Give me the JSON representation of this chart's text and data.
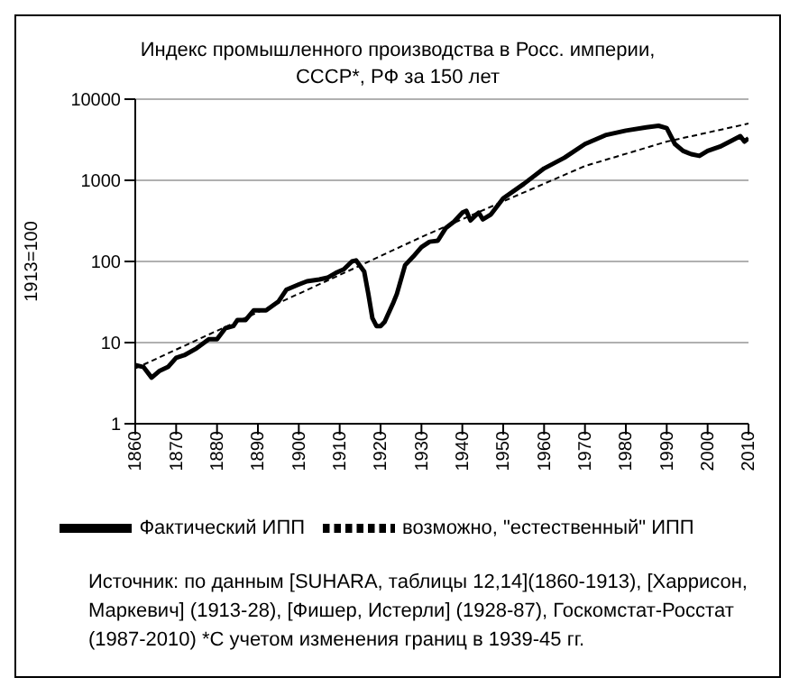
{
  "chart_data": {
    "type": "line",
    "title": "Индекс промышленного производства в Росс. империи, СССР*, РФ за 150 лет",
    "ylabel": "1913=100",
    "log": "y",
    "grid": "y",
    "legend": "bottom",
    "marker": "none",
    "xlim": [
      1860,
      2010
    ],
    "xticks": [
      1860,
      1870,
      1880,
      1890,
      1900,
      1910,
      1920,
      1930,
      1940,
      1950,
      1960,
      1970,
      1980,
      1990,
      2000,
      2010
    ],
    "ylim": [
      1,
      10000
    ],
    "yticks": [
      1,
      10,
      100,
      1000,
      10000
    ],
    "series": [
      {
        "name": "Фактический ИПП",
        "color": "#000000",
        "line_style": "solid",
        "x": [
          1860,
          1862,
          1864,
          1866,
          1868,
          1870,
          1872,
          1875,
          1878,
          1880,
          1882,
          1884,
          1885,
          1887,
          1889,
          1892,
          1895,
          1897,
          1900,
          1902,
          1905,
          1907,
          1909,
          1911,
          1913,
          1914,
          1916,
          1917,
          1918,
          1919,
          1920,
          1921,
          1923,
          1924,
          1926,
          1928,
          1930,
          1932,
          1934,
          1936,
          1938,
          1940,
          1941,
          1942,
          1944,
          1945,
          1947,
          1950,
          1955,
          1960,
          1965,
          1970,
          1975,
          1980,
          1985,
          1988,
          1990,
          1992,
          1994,
          1996,
          1998,
          2000,
          2003,
          2006,
          2008,
          2009,
          2010
        ],
        "values": [
          5.3,
          5,
          3.7,
          4.5,
          5,
          6.5,
          7,
          8.5,
          11,
          11,
          15,
          16,
          19,
          19,
          25,
          25,
          32,
          45,
          52,
          57,
          60,
          63,
          72,
          80,
          100,
          103,
          75,
          40,
          20,
          16,
          16,
          18,
          30,
          40,
          90,
          115,
          150,
          175,
          180,
          260,
          310,
          400,
          420,
          320,
          400,
          330,
          380,
          600,
          900,
          1400,
          1900,
          2800,
          3600,
          4100,
          4500,
          4700,
          4400,
          2800,
          2300,
          2100,
          2000,
          2300,
          2600,
          3100,
          3500,
          3000,
          3300
        ]
      },
      {
        "name": "возможно, \"естественный\" ИПП",
        "color": "#000000",
        "line_style": "dashed",
        "x": [
          1860,
          1880,
          1900,
          1913,
          1930,
          1950,
          1970,
          1990,
          2010
        ],
        "values": [
          4.8,
          14,
          40,
          80,
          200,
          550,
          1500,
          3000,
          5000
        ]
      }
    ],
    "annotations": [
      "Источник: по данным [SUHARA, таблицы 12,14](1860-1913), [Харрисон, Маркевич] (1913-28), [Фишер, Истерли] (1928-87), Госкомстат-Росстат (1987-2010) *С учетом изменения границ в 1939-45 гг."
    ]
  }
}
